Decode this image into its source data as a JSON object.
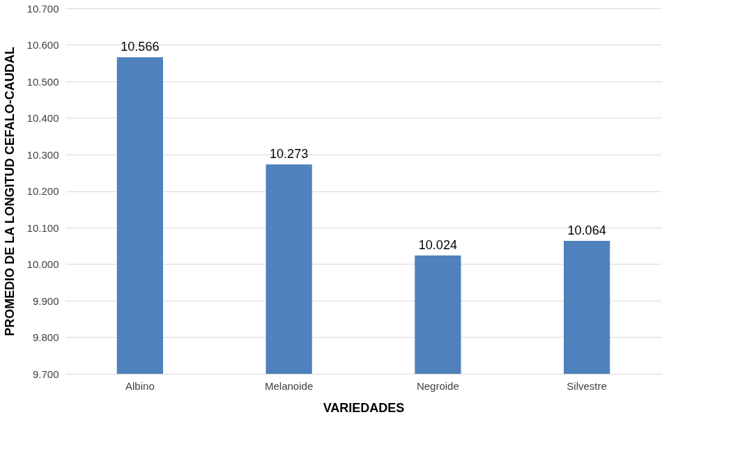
{
  "chart_data": {
    "type": "bar",
    "xlabel": "VARIEDADES",
    "ylabel": "PROMEDIO DE LA LONGITUD CEFALO-CAUDAL",
    "categories": [
      "Albino",
      "Melanoide",
      "Negroide",
      "Silvestre"
    ],
    "values": [
      10.566,
      10.273,
      10.024,
      10.064
    ],
    "color": "#4f81bd",
    "ylim": [
      9.7,
      10.7
    ],
    "yticks": [
      {
        "value": 9.7,
        "label": "9.700"
      },
      {
        "value": 9.8,
        "label": "9.800"
      },
      {
        "value": 9.9,
        "label": "9.900"
      },
      {
        "value": 10.0,
        "label": "10.000"
      },
      {
        "value": 10.1,
        "label": "10.100"
      },
      {
        "value": 10.2,
        "label": "10.200"
      },
      {
        "value": 10.3,
        "label": "10.300"
      },
      {
        "value": 10.4,
        "label": "10.400"
      },
      {
        "value": 10.5,
        "label": "10.500"
      },
      {
        "value": 10.6,
        "label": "10.600"
      },
      {
        "value": 10.7,
        "label": "10.700"
      }
    ],
    "grid": "y",
    "data_labels": true
  }
}
